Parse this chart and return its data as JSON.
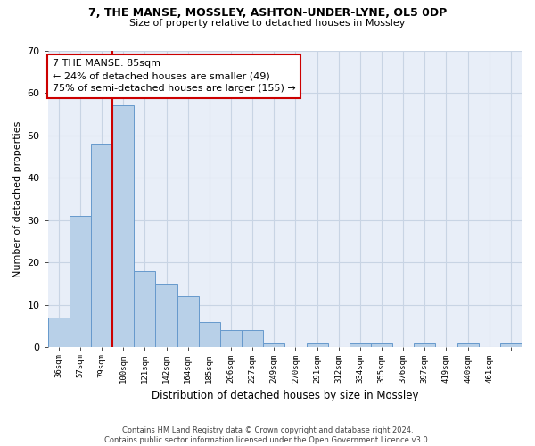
{
  "title1": "7, THE MANSE, MOSSLEY, ASHTON-UNDER-LYNE, OL5 0DP",
  "title2": "Size of property relative to detached houses in Mossley",
  "xlabel": "Distribution of detached houses by size in Mossley",
  "ylabel": "Number of detached properties",
  "bar_values": [
    7,
    31,
    48,
    57,
    18,
    15,
    12,
    6,
    4,
    4,
    1,
    0,
    1,
    0,
    1,
    1,
    0,
    1,
    0,
    1,
    0,
    1
  ],
  "bar_labels": [
    "36sqm",
    "57sqm",
    "79sqm",
    "100sqm",
    "121sqm",
    "142sqm",
    "164sqm",
    "185sqm",
    "206sqm",
    "227sqm",
    "249sqm",
    "270sqm",
    "291sqm",
    "312sqm",
    "334sqm",
    "355sqm",
    "376sqm",
    "397sqm",
    "419sqm",
    "440sqm",
    "461sqm",
    ""
  ],
  "bar_color": "#b8d0e8",
  "bar_edge_color": "#6699cc",
  "bar_edge_width": 0.7,
  "grid_color": "#c8d4e4",
  "bg_color": "#e8eef8",
  "vline_color": "#cc0000",
  "annotation_text_line1": "7 THE MANSE: 85sqm",
  "annotation_text_line2": "← 24% of detached houses are smaller (49)",
  "annotation_text_line3": "75% of semi-detached houses are larger (155) →",
  "annotation_box_color": "#ffffff",
  "annotation_box_edge": "#cc0000",
  "ylim": [
    0,
    70
  ],
  "yticks": [
    0,
    10,
    20,
    30,
    40,
    50,
    60,
    70
  ],
  "footer1": "Contains HM Land Registry data © Crown copyright and database right 2024.",
  "footer2": "Contains public sector information licensed under the Open Government Licence v3.0."
}
